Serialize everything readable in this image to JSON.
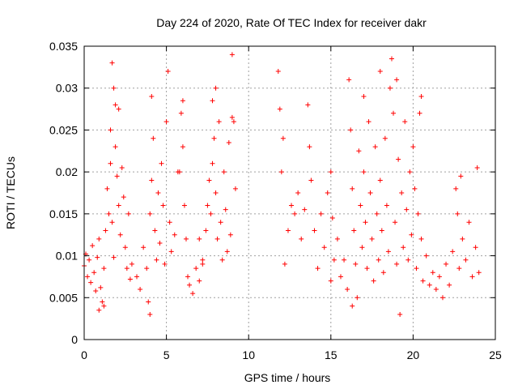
{
  "chart_data": {
    "type": "scatter",
    "title": "Day 224 of 2020, Rate Of TEC Index for receiver dakr",
    "xlabel": "GPS time / hours",
    "ylabel": "ROTI / TECUs",
    "xlim": [
      0,
      25
    ],
    "ylim": [
      0,
      0.035
    ],
    "xticks": [
      0,
      5,
      10,
      15,
      20,
      25
    ],
    "yticks": [
      0,
      0.005,
      0.01,
      0.015,
      0.02,
      0.025,
      0.03,
      0.035
    ],
    "xtick_labels": [
      "0",
      "5",
      "10",
      "15",
      "20",
      "25"
    ],
    "ytick_labels": [
      "0",
      "0.005",
      "0.01",
      "0.015",
      "0.02",
      "0.025",
      "0.03",
      "0.035"
    ],
    "grid": true,
    "marker": "+",
    "series_color": "#ff0000",
    "series": [
      {
        "name": "ROTI",
        "points": [
          [
            0.0,
            0.0088
          ],
          [
            0.1,
            0.0102
          ],
          [
            0.2,
            0.0075
          ],
          [
            0.3,
            0.0095
          ],
          [
            0.4,
            0.0068
          ],
          [
            0.5,
            0.0112
          ],
          [
            0.6,
            0.008
          ],
          [
            0.7,
            0.0058
          ],
          [
            0.8,
            0.0098
          ],
          [
            0.9,
            0.012
          ],
          [
            1.0,
            0.0062
          ],
          [
            1.1,
            0.0045
          ],
          [
            1.2,
            0.0085
          ],
          [
            1.3,
            0.013
          ],
          [
            1.4,
            0.018
          ],
          [
            1.5,
            0.015
          ],
          [
            1.6,
            0.021
          ],
          [
            1.7,
            0.014
          ],
          [
            1.8,
            0.0098
          ],
          [
            1.9,
            0.023
          ],
          [
            2.0,
            0.0195
          ],
          [
            2.1,
            0.016
          ],
          [
            2.2,
            0.0125
          ],
          [
            2.3,
            0.0205
          ],
          [
            2.4,
            0.017
          ],
          [
            2.5,
            0.011
          ],
          [
            2.6,
            0.0085
          ],
          [
            2.7,
            0.015
          ],
          [
            2.8,
            0.0072
          ],
          [
            2.9,
            0.009
          ],
          [
            1.7,
            0.033
          ],
          [
            1.8,
            0.03
          ],
          [
            1.9,
            0.028
          ],
          [
            2.1,
            0.0275
          ],
          [
            1.6,
            0.025
          ],
          [
            0.9,
            0.0035
          ],
          [
            1.2,
            0.004
          ],
          [
            3.2,
            0.0075
          ],
          [
            3.4,
            0.006
          ],
          [
            3.6,
            0.011
          ],
          [
            3.8,
            0.0085
          ],
          [
            4.0,
            0.015
          ],
          [
            4.1,
            0.019
          ],
          [
            4.2,
            0.024
          ],
          [
            4.3,
            0.013
          ],
          [
            4.4,
            0.0095
          ],
          [
            4.5,
            0.0175
          ],
          [
            4.6,
            0.0115
          ],
          [
            4.7,
            0.021
          ],
          [
            4.8,
            0.016
          ],
          [
            4.9,
            0.009
          ],
          [
            5.0,
            0.026
          ],
          [
            5.1,
            0.032
          ],
          [
            5.2,
            0.014
          ],
          [
            5.3,
            0.0105
          ],
          [
            5.5,
            0.0125
          ],
          [
            5.7,
            0.02
          ],
          [
            5.9,
            0.027
          ],
          [
            6.0,
            0.023
          ],
          [
            6.1,
            0.016
          ],
          [
            6.2,
            0.012
          ],
          [
            6.3,
            0.0075
          ],
          [
            6.4,
            0.0065
          ],
          [
            6.6,
            0.0055
          ],
          [
            6.8,
            0.0085
          ],
          [
            7.0,
            0.007
          ],
          [
            7.2,
            0.0095
          ],
          [
            4.1,
            0.029
          ],
          [
            4.0,
            0.003
          ],
          [
            3.9,
            0.0045
          ],
          [
            6.0,
            0.0285
          ],
          [
            5.8,
            0.02
          ],
          [
            7.4,
            0.013
          ],
          [
            7.5,
            0.016
          ],
          [
            7.6,
            0.019
          ],
          [
            7.7,
            0.015
          ],
          [
            7.8,
            0.021
          ],
          [
            7.9,
            0.024
          ],
          [
            8.0,
            0.0175
          ],
          [
            8.1,
            0.012
          ],
          [
            8.2,
            0.026
          ],
          [
            8.3,
            0.014
          ],
          [
            8.4,
            0.0095
          ],
          [
            8.5,
            0.02
          ],
          [
            8.6,
            0.0155
          ],
          [
            8.7,
            0.0105
          ],
          [
            8.8,
            0.0235
          ],
          [
            8.9,
            0.0125
          ],
          [
            9.0,
            0.034
          ],
          [
            9.1,
            0.026
          ],
          [
            9.2,
            0.018
          ],
          [
            7.8,
            0.0285
          ],
          [
            8.0,
            0.03
          ],
          [
            9.0,
            0.0265
          ],
          [
            7.2,
            0.009
          ],
          [
            7.0,
            0.012
          ],
          [
            11.8,
            0.032
          ],
          [
            11.9,
            0.0275
          ],
          [
            12.0,
            0.02
          ],
          [
            12.1,
            0.024
          ],
          [
            12.2,
            0.009
          ],
          [
            12.4,
            0.013
          ],
          [
            12.6,
            0.016
          ],
          [
            12.8,
            0.015
          ],
          [
            13.0,
            0.0175
          ],
          [
            13.2,
            0.012
          ],
          [
            13.4,
            0.0155
          ],
          [
            13.6,
            0.028
          ],
          [
            13.7,
            0.023
          ],
          [
            13.8,
            0.019
          ],
          [
            14.0,
            0.013
          ],
          [
            14.2,
            0.0085
          ],
          [
            14.4,
            0.015
          ],
          [
            14.6,
            0.011
          ],
          [
            14.8,
            0.0175
          ],
          [
            15.0,
            0.02
          ],
          [
            15.1,
            0.0145
          ],
          [
            15.2,
            0.0095
          ],
          [
            15.4,
            0.012
          ],
          [
            15.6,
            0.0075
          ],
          [
            15.8,
            0.0095
          ],
          [
            16.0,
            0.006
          ],
          [
            16.1,
            0.031
          ],
          [
            16.2,
            0.025
          ],
          [
            16.3,
            0.018
          ],
          [
            16.4,
            0.013
          ],
          [
            16.5,
            0.009
          ],
          [
            16.6,
            0.005
          ],
          [
            16.7,
            0.0225
          ],
          [
            16.8,
            0.016
          ],
          [
            16.9,
            0.011
          ],
          [
            17.0,
            0.02
          ],
          [
            17.1,
            0.014
          ],
          [
            17.2,
            0.0085
          ],
          [
            17.3,
            0.026
          ],
          [
            17.4,
            0.0175
          ],
          [
            17.5,
            0.012
          ],
          [
            17.6,
            0.007
          ],
          [
            17.7,
            0.023
          ],
          [
            17.8,
            0.015
          ],
          [
            17.9,
            0.0095
          ],
          [
            18.0,
            0.019
          ],
          [
            18.1,
            0.013
          ],
          [
            18.2,
            0.008
          ],
          [
            18.3,
            0.024
          ],
          [
            18.4,
            0.016
          ],
          [
            18.5,
            0.0105
          ],
          [
            18.6,
            0.03
          ],
          [
            18.7,
            0.0335
          ],
          [
            18.8,
            0.027
          ],
          [
            18.9,
            0.014
          ],
          [
            19.0,
            0.009
          ],
          [
            19.1,
            0.0215
          ],
          [
            19.2,
            0.003
          ],
          [
            19.3,
            0.0175
          ],
          [
            19.4,
            0.011
          ],
          [
            19.5,
            0.026
          ],
          [
            19.6,
            0.0155
          ],
          [
            19.7,
            0.0095
          ],
          [
            19.8,
            0.02
          ],
          [
            19.9,
            0.0125
          ],
          [
            20.0,
            0.023
          ],
          [
            20.1,
            0.018
          ],
          [
            20.2,
            0.0085
          ],
          [
            20.3,
            0.015
          ],
          [
            20.4,
            0.027
          ],
          [
            20.5,
            0.012
          ],
          [
            20.6,
            0.007
          ],
          [
            20.8,
            0.01
          ],
          [
            21.0,
            0.0065
          ],
          [
            21.2,
            0.008
          ],
          [
            21.4,
            0.006
          ],
          [
            21.6,
            0.0075
          ],
          [
            21.8,
            0.005
          ],
          [
            22.0,
            0.009
          ],
          [
            22.2,
            0.0065
          ],
          [
            22.4,
            0.0105
          ],
          [
            22.6,
            0.018
          ],
          [
            22.7,
            0.015
          ],
          [
            22.8,
            0.0085
          ],
          [
            22.9,
            0.0195
          ],
          [
            23.0,
            0.012
          ],
          [
            23.2,
            0.0095
          ],
          [
            23.4,
            0.014
          ],
          [
            23.6,
            0.0075
          ],
          [
            23.8,
            0.011
          ],
          [
            23.9,
            0.0205
          ],
          [
            24.0,
            0.008
          ],
          [
            15.0,
            0.007
          ],
          [
            16.3,
            0.004
          ],
          [
            17.0,
            0.029
          ],
          [
            18.0,
            0.032
          ],
          [
            19.0,
            0.031
          ],
          [
            20.5,
            0.029
          ]
        ]
      }
    ]
  }
}
